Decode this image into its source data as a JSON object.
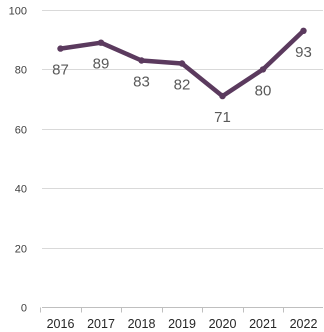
{
  "chart_data": {
    "type": "line",
    "title": "",
    "xlabel": "",
    "ylabel": "",
    "categories": [
      "2016",
      "2017",
      "2018",
      "2019",
      "2020",
      "2021",
      "2022"
    ],
    "series": [
      {
        "values": [
          87,
          89,
          83,
          82,
          71,
          80,
          93
        ],
        "color": "#5b3a5e"
      }
    ],
    "ylim": [
      0,
      100
    ],
    "yticks": [
      0,
      20,
      40,
      60,
      80,
      100
    ],
    "grid": true,
    "legend": "none",
    "data_labels": true
  }
}
